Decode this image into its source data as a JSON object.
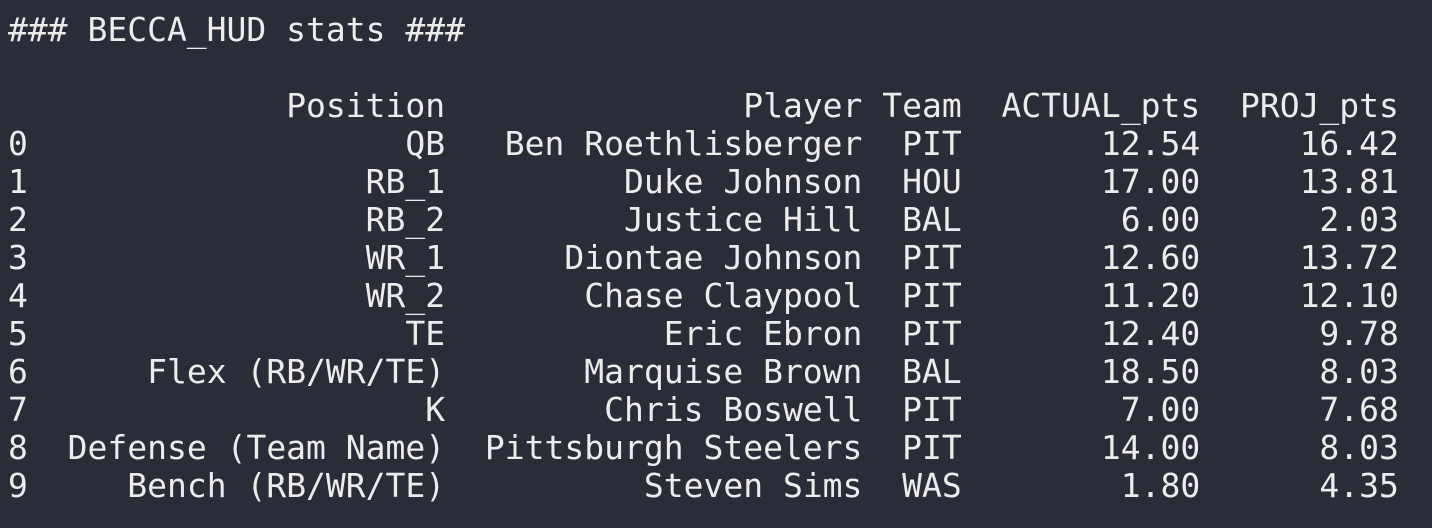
{
  "header": {
    "title": "### BECCA_HUD stats ###"
  },
  "table": {
    "columns": [
      "Position",
      "Player",
      "Team",
      "ACTUAL_pts",
      "PROJ_pts"
    ],
    "rows": [
      [
        "0",
        "QB",
        "Ben Roethlisberger",
        "PIT",
        "12.54",
        "16.42"
      ],
      [
        "1",
        "RB_1",
        "Duke Johnson",
        "HOU",
        "17.00",
        "13.81"
      ],
      [
        "2",
        "RB_2",
        "Justice Hill",
        "BAL",
        "6.00",
        "2.03"
      ],
      [
        "3",
        "WR_1",
        "Diontae Johnson",
        "PIT",
        "12.60",
        "13.72"
      ],
      [
        "4",
        "WR_2",
        "Chase Claypool",
        "PIT",
        "11.20",
        "12.10"
      ],
      [
        "5",
        "TE",
        "Eric Ebron",
        "PIT",
        "12.40",
        "9.78"
      ],
      [
        "6",
        "Flex (RB/WR/TE)",
        "Marquise Brown",
        "BAL",
        "18.50",
        "8.03"
      ],
      [
        "7",
        "K",
        "Chris Boswell",
        "PIT",
        "7.00",
        "7.68"
      ],
      [
        "8",
        "Defense (Team Name)",
        "Pittsburgh Steelers",
        "PIT",
        "14.00",
        "8.03"
      ],
      [
        "9",
        "Bench (RB/WR/TE)",
        "Steven Sims",
        "WAS",
        "1.80",
        "4.35"
      ]
    ]
  }
}
